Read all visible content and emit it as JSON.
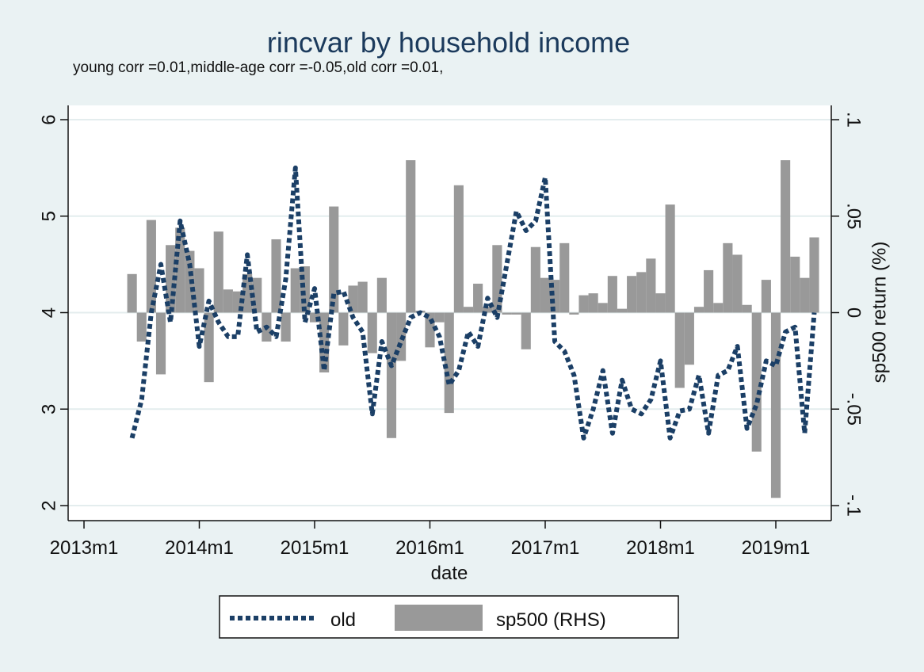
{
  "colors": {
    "background": "#eaf2f3",
    "plot_area": "#ffffff",
    "gridline": "#e4edee",
    "line_old": "#1b3f66",
    "bars_sp500": "#999999",
    "title": "#1b3a5c"
  },
  "chart_data": {
    "type": "bar+line",
    "title": "rincvar by household income",
    "subtitle": "young corr =0.01,middle-age corr =-0.05,old corr =0.01,",
    "xlabel": "date",
    "ylabel_left": "",
    "ylabel_right": "sp500 return (%)",
    "x_ticks": [
      "2013m1",
      "2014m1",
      "2015m1",
      "2016m1",
      "2017m1",
      "2018m1",
      "2019m1"
    ],
    "y_left_ticks": [
      "2",
      "3",
      "4",
      "5",
      "6"
    ],
    "y_left_range": [
      2,
      6
    ],
    "y_right_ticks": [
      "-.1",
      "-.05",
      "0",
      ".05",
      ".1"
    ],
    "y_right_range": [
      -0.1,
      0.1
    ],
    "grid": true,
    "legend_position": "bottom",
    "dates": [
      "2013m6",
      "2013m7",
      "2013m8",
      "2013m9",
      "2013m10",
      "2013m11",
      "2013m12",
      "2014m1",
      "2014m2",
      "2014m3",
      "2014m4",
      "2014m5",
      "2014m6",
      "2014m7",
      "2014m8",
      "2014m9",
      "2014m10",
      "2014m11",
      "2014m12",
      "2015m1",
      "2015m2",
      "2015m3",
      "2015m4",
      "2015m5",
      "2015m6",
      "2015m7",
      "2015m8",
      "2015m9",
      "2015m10",
      "2015m11",
      "2015m12",
      "2016m1",
      "2016m2",
      "2016m3",
      "2016m4",
      "2016m5",
      "2016m6",
      "2016m7",
      "2016m8",
      "2016m9",
      "2016m10",
      "2016m11",
      "2016m12",
      "2017m1",
      "2017m2",
      "2017m3",
      "2017m4",
      "2017m5",
      "2017m6",
      "2017m7",
      "2017m8",
      "2017m9",
      "2017m10",
      "2017m11",
      "2017m12",
      "2018m1",
      "2018m2",
      "2018m3",
      "2018m4",
      "2018m5",
      "2018m6",
      "2018m7",
      "2018m8",
      "2018m9",
      "2018m10",
      "2018m11",
      "2018m12",
      "2019m1",
      "2019m2",
      "2019m3",
      "2019m4",
      "2019m5"
    ],
    "series": [
      {
        "name": "old",
        "type": "line",
        "axis": "left",
        "values": [
          2.7,
          3.1,
          4.0,
          4.5,
          3.9,
          4.95,
          4.5,
          3.65,
          4.12,
          3.9,
          3.75,
          3.75,
          4.6,
          3.8,
          3.85,
          3.75,
          4.35,
          5.5,
          3.9,
          4.25,
          3.4,
          4.2,
          4.22,
          3.95,
          3.8,
          2.95,
          3.7,
          3.45,
          3.7,
          3.95,
          4.0,
          3.95,
          3.75,
          3.25,
          3.4,
          3.8,
          3.65,
          4.15,
          3.95,
          4.5,
          5.05,
          4.85,
          4.95,
          5.4,
          3.7,
          3.6,
          3.35,
          2.7,
          3.0,
          3.4,
          2.75,
          3.3,
          3.0,
          2.95,
          3.1,
          3.5,
          2.7,
          2.98,
          3.0,
          3.35,
          2.75,
          3.35,
          3.4,
          3.65,
          2.8,
          3.05,
          3.5,
          3.45,
          3.8,
          3.85,
          2.75,
          4.0
        ]
      },
      {
        "name": "sp500 (RHS)",
        "type": "bar",
        "axis": "right",
        "values": [
          0.02,
          -0.015,
          0.048,
          -0.032,
          0.035,
          0.044,
          0.032,
          0.023,
          -0.036,
          0.042,
          0.012,
          0.011,
          0.02,
          0.018,
          -0.015,
          0.038,
          -0.015,
          0.023,
          0.024,
          -0.005,
          -0.031,
          0.055,
          -0.017,
          0.014,
          0.016,
          -0.021,
          0.018,
          -0.065,
          -0.025,
          0.079,
          0.001,
          -0.018,
          -0.005,
          -0.052,
          0.066,
          0.003,
          0.015,
          0.003,
          0.035,
          -0.001,
          -0.001,
          -0.019,
          0.034,
          0.018,
          0.017,
          0.036,
          -0.001,
          0.009,
          0.01,
          0.005,
          0.019,
          0.002,
          0.019,
          0.021,
          0.028,
          0.01,
          0.056,
          -0.039,
          -0.027,
          0.003,
          0.022,
          0.005,
          0.036,
          0.03,
          0.004,
          -0.072,
          0.017,
          -0.096,
          0.079,
          0.029,
          0.018,
          0.039
        ]
      }
    ]
  }
}
